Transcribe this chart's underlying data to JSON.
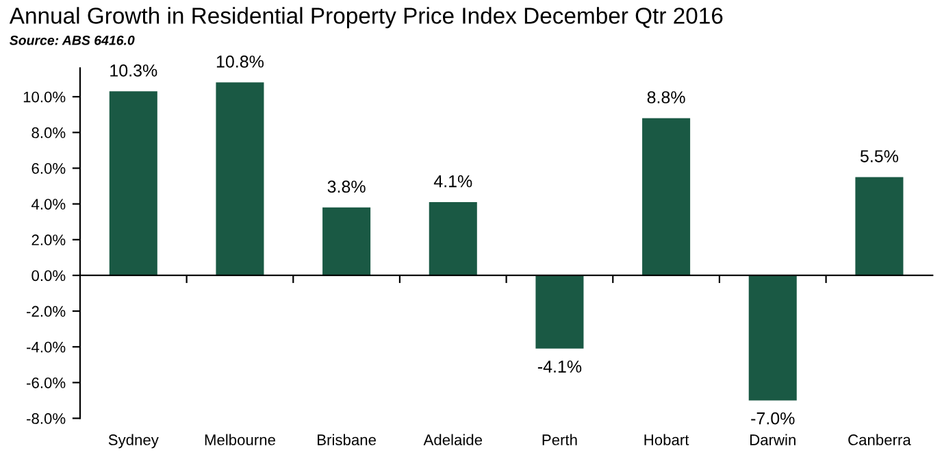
{
  "chart_data": {
    "type": "bar",
    "title": "Annual Growth in Residential Property Price Index December Qtr 2016",
    "subtitle": "Source: ABS 6416.0",
    "categories": [
      "Sydney",
      "Melbourne",
      "Brisbane",
      "Adelaide",
      "Perth",
      "Hobart",
      "Darwin",
      "Canberra"
    ],
    "values": [
      10.3,
      10.8,
      3.8,
      4.1,
      -4.1,
      8.8,
      -7.0,
      5.5
    ],
    "value_labels": [
      "10.3%",
      "10.8%",
      "3.8%",
      "4.1%",
      "-4.1%",
      "8.8%",
      "-7.0%",
      "5.5%"
    ],
    "color": "#1a5944",
    "ylim": [
      -8,
      11.6
    ],
    "yticks": [
      {
        "value": -8,
        "label": "-8.0%"
      },
      {
        "value": -6,
        "label": "-6.0%"
      },
      {
        "value": -4,
        "label": "-4.0%"
      },
      {
        "value": -2,
        "label": "-2.0%"
      },
      {
        "value": 0,
        "label": "0.0%"
      },
      {
        "value": 2,
        "label": "2.0%"
      },
      {
        "value": 4,
        "label": "4.0%"
      },
      {
        "value": 6,
        "label": "6.0%"
      },
      {
        "value": 8,
        "label": "8.0%"
      },
      {
        "value": 10,
        "label": "10.0%"
      }
    ],
    "legend": false
  }
}
